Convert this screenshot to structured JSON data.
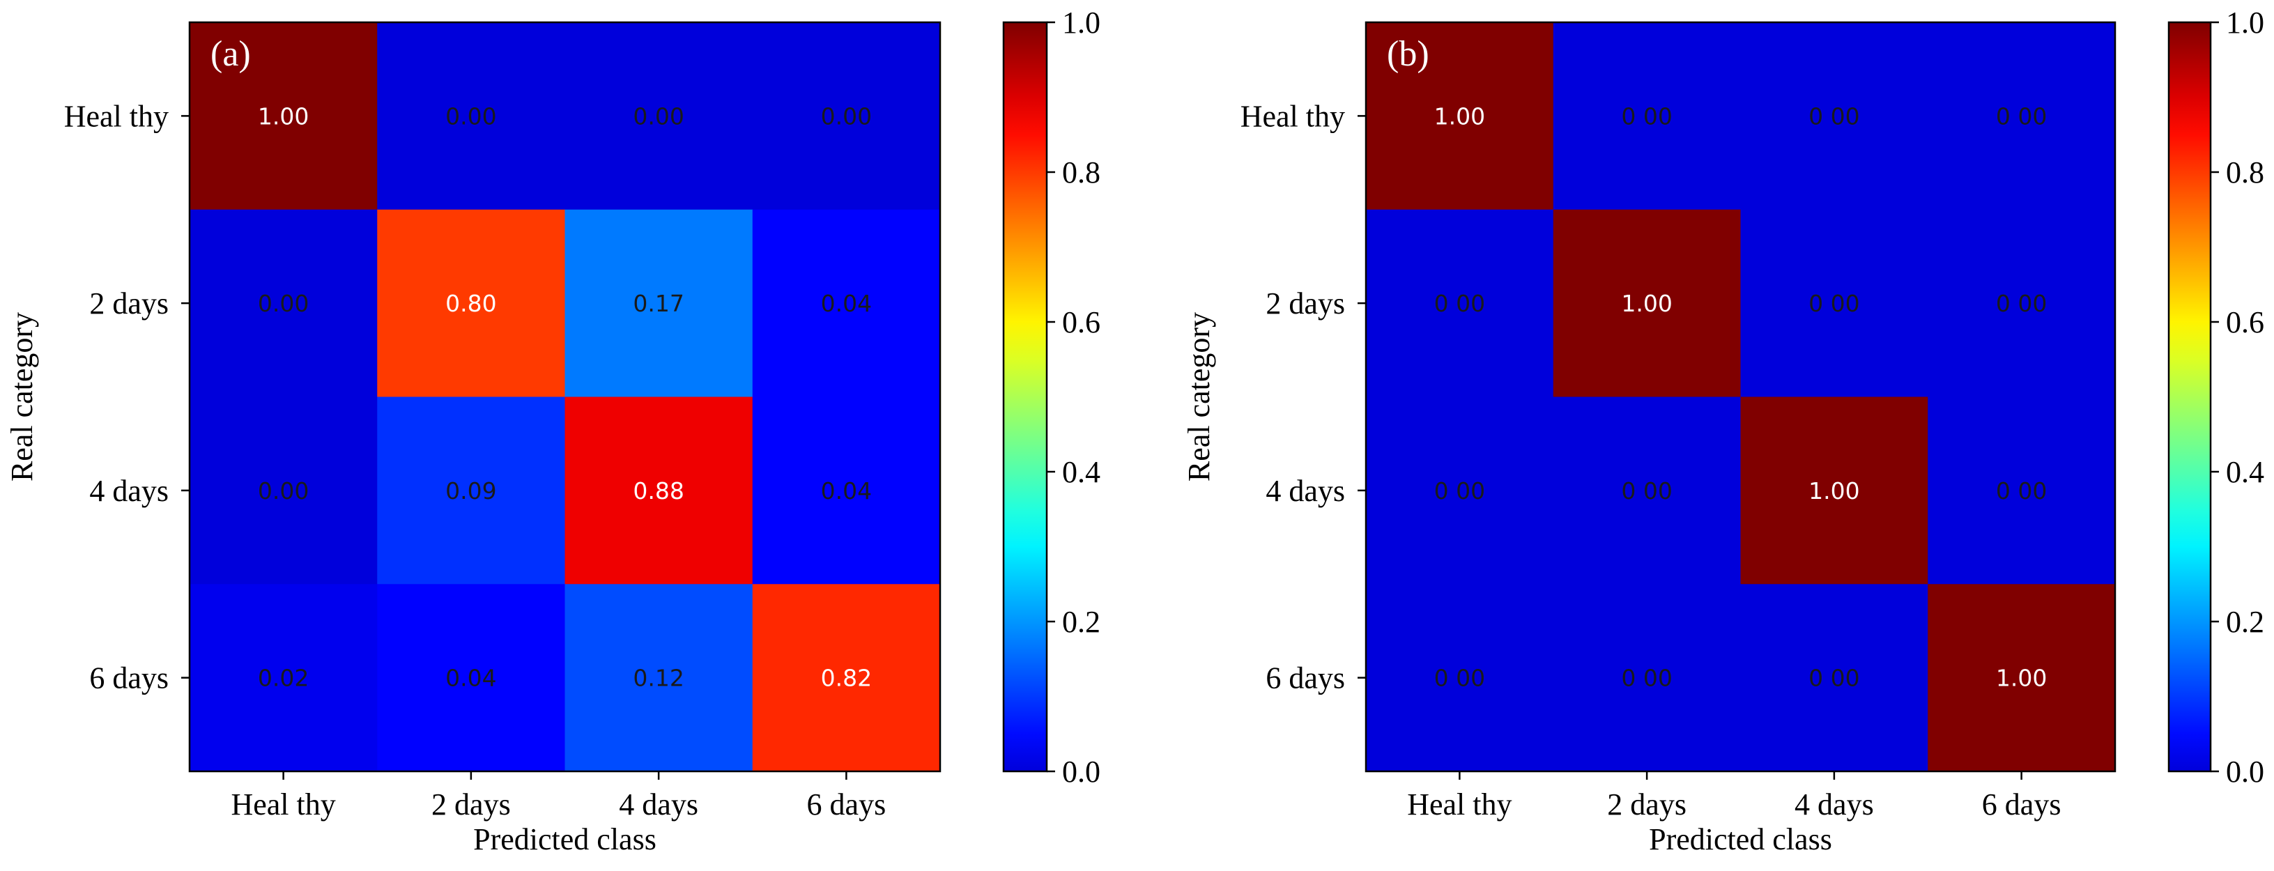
{
  "figure": {
    "colorbar_ticks": [
      "0.0",
      "0.2",
      "0.4",
      "0.6",
      "0.8",
      "1.0"
    ],
    "colorbar_range": [
      0,
      1
    ],
    "colormap": "jet",
    "text_colors": {
      "light": "#ffffff",
      "dark": "#1a1a1a"
    }
  },
  "chart_data": [
    {
      "type": "heatmap",
      "panel_label": "(a)",
      "xlabel": "Predicted class",
      "ylabel": "Real category",
      "x_categories": [
        "Heal thy",
        "2 days",
        "4 days",
        "6 days"
      ],
      "y_categories": [
        "Heal thy",
        "2 days",
        "4 days",
        "6 days"
      ],
      "values": [
        [
          1.0,
          0.0,
          0.0,
          0.0
        ],
        [
          0.0,
          0.8,
          0.17,
          0.04
        ],
        [
          0.0,
          0.09,
          0.88,
          0.04
        ],
        [
          0.02,
          0.04,
          0.12,
          0.82
        ]
      ],
      "labels": [
        [
          "1.00",
          "0.00",
          "0.00",
          "0.00"
        ],
        [
          "0.00",
          "0.80",
          "0.17",
          "0.04"
        ],
        [
          "0.00",
          "0.09",
          "0.88",
          "0.04"
        ],
        [
          "0.02",
          "0.04",
          "0.12",
          "0.82"
        ]
      ],
      "zlim": [
        0,
        1
      ]
    },
    {
      "type": "heatmap",
      "panel_label": "(b)",
      "xlabel": "Predicted class",
      "ylabel": "Real category",
      "x_categories": [
        "Heal thy",
        "2 days",
        "4 days",
        "6 days"
      ],
      "y_categories": [
        "Heal thy",
        "2 days",
        "4 days",
        "6 days"
      ],
      "values": [
        [
          1.0,
          0.0,
          0.0,
          0.0
        ],
        [
          0.0,
          1.0,
          0.0,
          0.0
        ],
        [
          0.0,
          0.0,
          1.0,
          0.0
        ],
        [
          0.0,
          0.0,
          0.0,
          1.0
        ]
      ],
      "labels": [
        [
          "1.00",
          "0 00",
          "0 00",
          "0 00"
        ],
        [
          "0 00",
          "1.00",
          "0 00",
          "0 00"
        ],
        [
          "0 00",
          "0 00",
          "1.00",
          "0 00"
        ],
        [
          "0 00",
          "0 00",
          "0 00",
          "1.00"
        ]
      ],
      "zlim": [
        0,
        1
      ]
    }
  ]
}
